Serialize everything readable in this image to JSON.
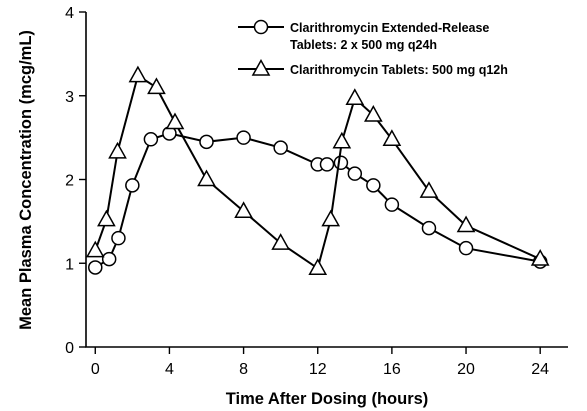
{
  "chart_data": {
    "type": "line",
    "title": "",
    "xlabel": "Time After Dosing (hours)",
    "ylabel": "Mean Plasma Concentration (mcg/mL)",
    "xlim": [
      -0.5,
      25.5
    ],
    "ylim": [
      0,
      4
    ],
    "xticks": [
      0,
      4,
      8,
      12,
      16,
      20,
      24
    ],
    "yticks": [
      0,
      1,
      2,
      3,
      4
    ],
    "grid": false,
    "legend_position": "top-right",
    "series": [
      {
        "name_lines": [
          "Clarithromycin Extended-Release",
          "Tablets: 2 x 500 mg q24h"
        ],
        "marker": "circle",
        "x": [
          0,
          0.75,
          1.25,
          2,
          3,
          4,
          6,
          8,
          10,
          12,
          12.5,
          13.25,
          14,
          15,
          16,
          18,
          20,
          24
        ],
        "y": [
          0.95,
          1.05,
          1.3,
          1.93,
          2.48,
          2.55,
          2.45,
          2.5,
          2.38,
          2.18,
          2.18,
          2.2,
          2.07,
          1.93,
          1.7,
          1.42,
          1.18,
          1.02
        ]
      },
      {
        "name_lines": [
          "Clarithromycin Tablets: 500 mg q12h"
        ],
        "marker": "triangle",
        "x": [
          0,
          0.6,
          1.2,
          2.3,
          3.3,
          4.3,
          6,
          8,
          10,
          12,
          12.7,
          13.3,
          14,
          15,
          16,
          18,
          20,
          24
        ],
        "y": [
          1.15,
          1.52,
          2.33,
          3.24,
          3.1,
          2.68,
          2.0,
          1.62,
          1.24,
          0.94,
          1.52,
          2.45,
          2.97,
          2.77,
          2.48,
          1.86,
          1.45,
          1.05
        ]
      }
    ]
  }
}
